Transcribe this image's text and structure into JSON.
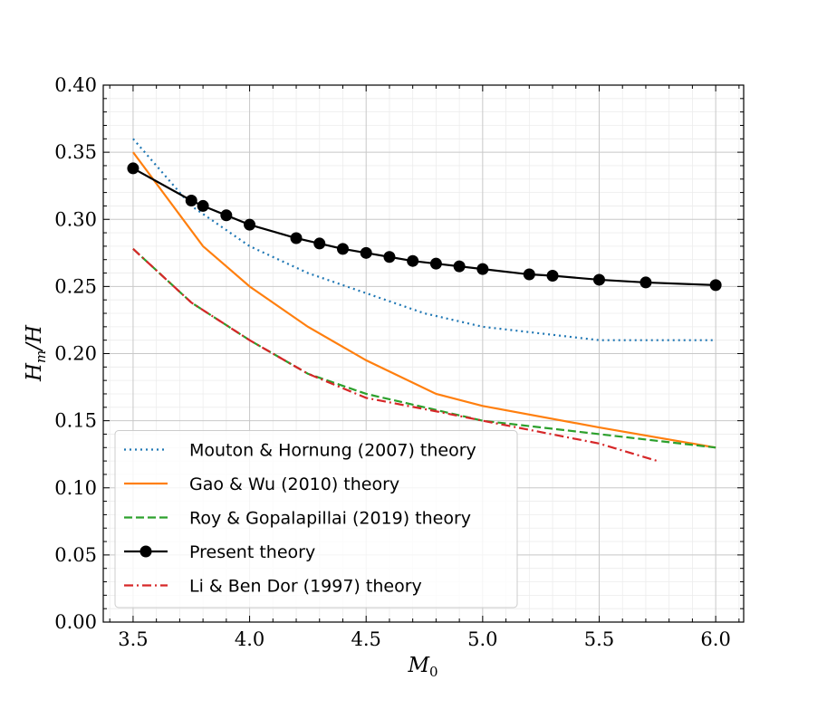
{
  "chart_data": {
    "type": "line",
    "xlabel": {
      "base": "M",
      "sub": "0"
    },
    "ylabel": {
      "base": "H",
      "sub": "m",
      "rest": "/H"
    },
    "xlim": [
      3.372,
      6.12
    ],
    "ylim": [
      0,
      0.4
    ],
    "xticks": [
      3.5,
      {
        "value": 4,
        "label": "4.0"
      },
      4.5,
      {
        "value": 5,
        "label": "5.0"
      },
      5.5,
      {
        "value": 6,
        "label": "6.0"
      }
    ],
    "yticks": [
      {
        "value": 0,
        "label": "0.00"
      },
      0.05,
      {
        "value": 0.1,
        "label": "0.10"
      },
      0.15,
      {
        "value": 0.2,
        "label": "0.20"
      },
      0.25,
      {
        "value": 0.3,
        "label": "0.30"
      },
      0.35,
      {
        "value": 0.4,
        "label": "0.40"
      }
    ],
    "xminorticks": [
      3.4,
      3.6,
      3.7,
      3.8,
      3.9,
      4.1,
      4.2,
      4.3,
      4.4,
      4.6,
      4.7,
      4.8,
      4.9,
      5.1,
      5.2,
      5.3,
      5.4,
      5.6,
      5.7,
      5.8,
      5.9,
      6.1
    ],
    "yminorticks": [
      0.01,
      0.02,
      0.03,
      0.04,
      0.06,
      0.07,
      0.08,
      0.09,
      0.11,
      0.12,
      0.13,
      0.14,
      0.16,
      0.17,
      0.18,
      0.19,
      0.21,
      0.22,
      0.23,
      0.24,
      0.26,
      0.27,
      0.28,
      0.29,
      0.31,
      0.32,
      0.33,
      0.34,
      0.36,
      0.37,
      0.38,
      0.39
    ],
    "grid": true,
    "minor_grid": true,
    "legend": "lower left",
    "series": [
      {
        "name": "Mouton & Hornung (2007) theory",
        "color": "#1f77b4",
        "dash": "dotted",
        "x": [
          3.5,
          3.75,
          4.0,
          4.25,
          4.5,
          4.75,
          5.0,
          5.25,
          5.5,
          5.75,
          6.0
        ],
        "values": [
          0.36,
          0.31,
          0.28,
          0.26,
          0.245,
          0.23,
          0.22,
          0.215,
          0.21,
          0.21,
          0.21
        ]
      },
      {
        "name": "Gao & Wu (2010) theory",
        "color": "#ff7f0e",
        "dash": "solid",
        "x": [
          3.5,
          3.8,
          4.0,
          4.25,
          4.5,
          4.8,
          5.0,
          5.5,
          6.0
        ],
        "values": [
          0.35,
          0.28,
          0.25,
          0.22,
          0.195,
          0.17,
          0.161,
          0.145,
          0.13
        ]
      },
      {
        "name": "Roy & Gopalapillai (2019) theory",
        "color": "#2ca02c",
        "dash": "dashed",
        "x": [
          3.5,
          3.75,
          4.0,
          4.25,
          4.5,
          5.0,
          5.5,
          6.0
        ],
        "values": [
          0.278,
          0.238,
          0.21,
          0.185,
          0.17,
          0.15,
          0.14,
          0.13
        ]
      },
      {
        "name": "Present theory",
        "color": "#000000",
        "dash": "solid",
        "marker": "circle",
        "x": [
          3.5,
          3.75,
          3.8,
          3.9,
          4.0,
          4.2,
          4.3,
          4.4,
          4.5,
          4.6,
          4.7,
          4.8,
          4.9,
          5.0,
          5.2,
          5.3,
          5.5,
          5.7,
          6.0
        ],
        "values": [
          0.338,
          0.314,
          0.31,
          0.303,
          0.296,
          0.286,
          0.282,
          0.278,
          0.275,
          0.272,
          0.269,
          0.267,
          0.265,
          0.263,
          0.259,
          0.258,
          0.255,
          0.253,
          0.251
        ]
      },
      {
        "name": "Li & Ben Dor (1997) theory",
        "color": "#d62728",
        "dash": "dashdot",
        "x": [
          3.5,
          3.75,
          4.0,
          4.25,
          4.5,
          4.8,
          5.0,
          5.5,
          5.75
        ],
        "values": [
          0.278,
          0.238,
          0.21,
          0.185,
          0.167,
          0.157,
          0.15,
          0.133,
          0.12
        ]
      }
    ]
  }
}
